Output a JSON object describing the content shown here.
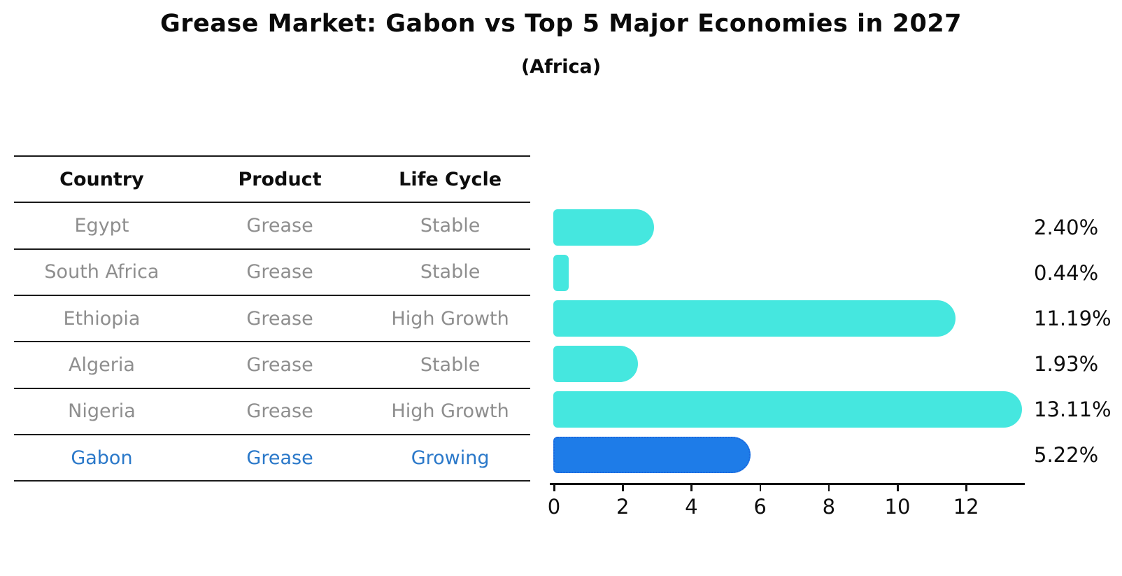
{
  "header": {
    "title": "Grease Market: Gabon vs Top 5 Major Economies in 2027",
    "subtitle": "(Africa)"
  },
  "table": {
    "columns": [
      "Country",
      "Product",
      "Life Cycle"
    ],
    "rows": [
      {
        "country": "Egypt",
        "product": "Grease",
        "life_cycle": "Stable",
        "highlighted": false
      },
      {
        "country": "South Africa",
        "product": "Grease",
        "life_cycle": "Stable",
        "highlighted": false
      },
      {
        "country": "Ethiopia",
        "product": "Grease",
        "life_cycle": "High Growth",
        "highlighted": false
      },
      {
        "country": "Algeria",
        "product": "Grease",
        "life_cycle": "Stable",
        "highlighted": false
      },
      {
        "country": "Nigeria",
        "product": "Grease",
        "life_cycle": "High Growth",
        "highlighted": false
      },
      {
        "country": "Gabon",
        "product": "Grease",
        "life_cycle": "Growing",
        "highlighted": true
      }
    ]
  },
  "chart_data": {
    "type": "bar",
    "orientation": "horizontal",
    "title": "Grease Market: Gabon vs Top 5 Major Economies in 2027",
    "subtitle": "(Africa)",
    "categories": [
      "Egypt",
      "South Africa",
      "Ethiopia",
      "Algeria",
      "Nigeria",
      "Gabon"
    ],
    "values": [
      2.4,
      0.44,
      11.19,
      1.93,
      13.11,
      5.22
    ],
    "value_labels": [
      "2.40%",
      "0.44%",
      "11.19%",
      "1.93%",
      "13.11%",
      "5.22%"
    ],
    "highlight_index": 5,
    "x_ticks": [
      0,
      2,
      4,
      6,
      8,
      10,
      12
    ],
    "xlim": [
      0,
      13.7
    ],
    "grid": false,
    "legend": "none",
    "colors": {
      "bar_default": "#45E7DF",
      "bar_highlight": "#1E7CE8",
      "bar_highlight_border": "#1a66dd",
      "highlight_text": "#2a78c9",
      "table_text": "#8e8e8e",
      "axis": "#111111"
    }
  }
}
